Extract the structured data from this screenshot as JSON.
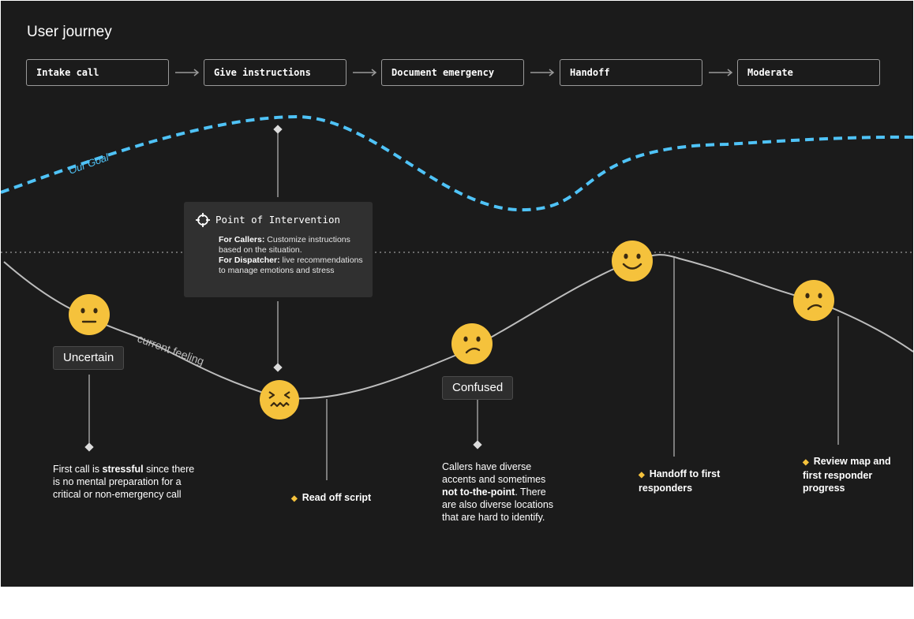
{
  "title": "User journey",
  "stages": [
    "Intake call",
    "Give instructions",
    "Document emergency",
    "Handoff",
    "Moderate"
  ],
  "goal_label": "Our Goal",
  "feeling_label": "current feeling",
  "intervention": {
    "title": "Point of Intervention",
    "callers_label": "For Callers:",
    "callers_text": "Customize instructions based on the situation.",
    "dispatcher_label": "For Dispatcher:",
    "dispatcher_text": "live recommendations to manage emotions and stress"
  },
  "tags": {
    "uncertain": "Uncertain",
    "confused": "Confused"
  },
  "notes": {
    "first_call_pre": "First call is ",
    "first_call_bold": "stressful",
    "first_call_post": " since there is no mental preparation for a critical or non-emergency call",
    "callers_pre": "Callers have diverse accents and sometimes ",
    "callers_bold": "not to-the-point",
    "callers_post": ". There are also diverse locations that are hard to identify."
  },
  "milestones": {
    "read_script": "Read off script",
    "handoff": "Handoff to first responders",
    "review": "Review map and first responder progress"
  },
  "faces": [
    "neutral-face",
    "frustrated-face",
    "confused-face",
    "happy-face",
    "worried-face"
  ],
  "colors": {
    "background": "#1b1b1b",
    "goal": "#4fc3f7",
    "face": "#f5c23c",
    "accent": "#f5c23c"
  }
}
